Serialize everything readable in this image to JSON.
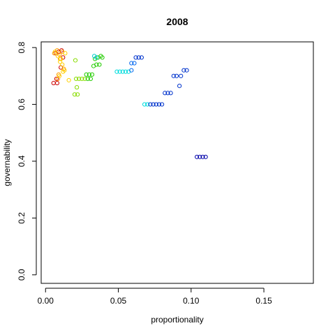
{
  "chart_data": {
    "type": "scatter",
    "title": "2008",
    "xlabel": "proportionality",
    "ylabel": "governability",
    "xlim": [
      -0.003,
      0.184
    ],
    "ylim": [
      -0.03,
      0.82
    ],
    "x_ticks": [
      0.0,
      0.05,
      0.1,
      0.15
    ],
    "x_tick_labels": [
      "0.00",
      "0.05",
      "0.10",
      "0.15"
    ],
    "y_ticks": [
      0.0,
      0.2,
      0.4,
      0.6,
      0.8
    ],
    "y_tick_labels": [
      "0.0",
      "0.2",
      "0.4",
      "0.6",
      "0.8"
    ],
    "grid": false,
    "marker": "open-circle",
    "points": [
      {
        "x": 0.0055,
        "y": 0.675,
        "color": "#cc0000"
      },
      {
        "x": 0.008,
        "y": 0.675,
        "color": "#cc0000"
      },
      {
        "x": 0.007,
        "y": 0.78,
        "color": "#cc0000"
      },
      {
        "x": 0.009,
        "y": 0.785,
        "color": "#cc0000"
      },
      {
        "x": 0.011,
        "y": 0.79,
        "color": "#cc0000"
      },
      {
        "x": 0.0075,
        "y": 0.69,
        "color": "#cc0000"
      },
      {
        "x": 0.012,
        "y": 0.765,
        "color": "#cc0000"
      },
      {
        "x": 0.0105,
        "y": 0.73,
        "color": "#cc0000"
      },
      {
        "x": 0.006,
        "y": 0.78,
        "color": "#ff9900"
      },
      {
        "x": 0.008,
        "y": 0.79,
        "color": "#ff9900"
      },
      {
        "x": 0.0095,
        "y": 0.775,
        "color": "#ff9900"
      },
      {
        "x": 0.01,
        "y": 0.76,
        "color": "#ff9900"
      },
      {
        "x": 0.0115,
        "y": 0.785,
        "color": "#ff9900"
      },
      {
        "x": 0.009,
        "y": 0.705,
        "color": "#ff9900"
      },
      {
        "x": 0.0125,
        "y": 0.725,
        "color": "#ff9900"
      },
      {
        "x": 0.0085,
        "y": 0.69,
        "color": "#ff9900"
      },
      {
        "x": 0.0065,
        "y": 0.785,
        "color": "#ffd000"
      },
      {
        "x": 0.0085,
        "y": 0.77,
        "color": "#ffd000"
      },
      {
        "x": 0.01,
        "y": 0.75,
        "color": "#ffd000"
      },
      {
        "x": 0.0115,
        "y": 0.74,
        "color": "#ffd000"
      },
      {
        "x": 0.013,
        "y": 0.72,
        "color": "#ffd000"
      },
      {
        "x": 0.0095,
        "y": 0.7,
        "color": "#ffd000"
      },
      {
        "x": 0.012,
        "y": 0.715,
        "color": "#ffd000"
      },
      {
        "x": 0.0105,
        "y": 0.76,
        "color": "#ffd000"
      },
      {
        "x": 0.016,
        "y": 0.685,
        "color": "#ffd000"
      },
      {
        "x": 0.0135,
        "y": 0.78,
        "color": "#ffd000"
      },
      {
        "x": 0.0205,
        "y": 0.755,
        "color": "#88dd00"
      },
      {
        "x": 0.02,
        "y": 0.635,
        "color": "#88dd00"
      },
      {
        "x": 0.022,
        "y": 0.635,
        "color": "#88dd00"
      },
      {
        "x": 0.0215,
        "y": 0.66,
        "color": "#88dd00"
      },
      {
        "x": 0.021,
        "y": 0.69,
        "color": "#88dd00"
      },
      {
        "x": 0.023,
        "y": 0.69,
        "color": "#88dd00"
      },
      {
        "x": 0.025,
        "y": 0.69,
        "color": "#88dd00"
      },
      {
        "x": 0.027,
        "y": 0.69,
        "color": "#88dd00"
      },
      {
        "x": 0.028,
        "y": 0.705,
        "color": "#22cc00"
      },
      {
        "x": 0.03,
        "y": 0.705,
        "color": "#22cc00"
      },
      {
        "x": 0.032,
        "y": 0.705,
        "color": "#22cc00"
      },
      {
        "x": 0.029,
        "y": 0.69,
        "color": "#22cc00"
      },
      {
        "x": 0.031,
        "y": 0.69,
        "color": "#22cc00"
      },
      {
        "x": 0.033,
        "y": 0.735,
        "color": "#22cc00"
      },
      {
        "x": 0.035,
        "y": 0.74,
        "color": "#22cc00"
      },
      {
        "x": 0.037,
        "y": 0.74,
        "color": "#22cc00"
      },
      {
        "x": 0.034,
        "y": 0.76,
        "color": "#22cc00"
      },
      {
        "x": 0.036,
        "y": 0.765,
        "color": "#22cc00"
      },
      {
        "x": 0.038,
        "y": 0.77,
        "color": "#22cc00"
      },
      {
        "x": 0.039,
        "y": 0.765,
        "color": "#22cc00"
      },
      {
        "x": 0.0335,
        "y": 0.77,
        "color": "#00cccc"
      },
      {
        "x": 0.035,
        "y": 0.765,
        "color": "#00cccc"
      },
      {
        "x": 0.049,
        "y": 0.715,
        "color": "#00dddd"
      },
      {
        "x": 0.051,
        "y": 0.715,
        "color": "#00dddd"
      },
      {
        "x": 0.053,
        "y": 0.715,
        "color": "#00dddd"
      },
      {
        "x": 0.055,
        "y": 0.715,
        "color": "#00dddd"
      },
      {
        "x": 0.057,
        "y": 0.715,
        "color": "#00dddd"
      },
      {
        "x": 0.068,
        "y": 0.6,
        "color": "#00dddd"
      },
      {
        "x": 0.07,
        "y": 0.6,
        "color": "#00dddd"
      },
      {
        "x": 0.059,
        "y": 0.72,
        "color": "#0066ee"
      },
      {
        "x": 0.059,
        "y": 0.745,
        "color": "#0066ee"
      },
      {
        "x": 0.061,
        "y": 0.745,
        "color": "#0066ee"
      },
      {
        "x": 0.062,
        "y": 0.765,
        "color": "#0033cc"
      },
      {
        "x": 0.064,
        "y": 0.765,
        "color": "#0033cc"
      },
      {
        "x": 0.066,
        "y": 0.765,
        "color": "#0033cc"
      },
      {
        "x": 0.072,
        "y": 0.6,
        "color": "#0033cc"
      },
      {
        "x": 0.074,
        "y": 0.6,
        "color": "#0033cc"
      },
      {
        "x": 0.076,
        "y": 0.6,
        "color": "#0033cc"
      },
      {
        "x": 0.078,
        "y": 0.6,
        "color": "#0033cc"
      },
      {
        "x": 0.08,
        "y": 0.6,
        "color": "#0033cc"
      },
      {
        "x": 0.082,
        "y": 0.64,
        "color": "#0033cc"
      },
      {
        "x": 0.084,
        "y": 0.64,
        "color": "#0033cc"
      },
      {
        "x": 0.086,
        "y": 0.64,
        "color": "#0033cc"
      },
      {
        "x": 0.088,
        "y": 0.7,
        "color": "#0033cc"
      },
      {
        "x": 0.09,
        "y": 0.7,
        "color": "#0033cc"
      },
      {
        "x": 0.092,
        "y": 0.665,
        "color": "#0033cc"
      },
      {
        "x": 0.093,
        "y": 0.7,
        "color": "#0033cc"
      },
      {
        "x": 0.095,
        "y": 0.72,
        "color": "#0033cc"
      },
      {
        "x": 0.097,
        "y": 0.72,
        "color": "#0033cc"
      },
      {
        "x": 0.104,
        "y": 0.415,
        "color": "#0000aa"
      },
      {
        "x": 0.106,
        "y": 0.415,
        "color": "#0000aa"
      },
      {
        "x": 0.108,
        "y": 0.415,
        "color": "#0000aa"
      },
      {
        "x": 0.11,
        "y": 0.415,
        "color": "#0000aa"
      }
    ]
  }
}
